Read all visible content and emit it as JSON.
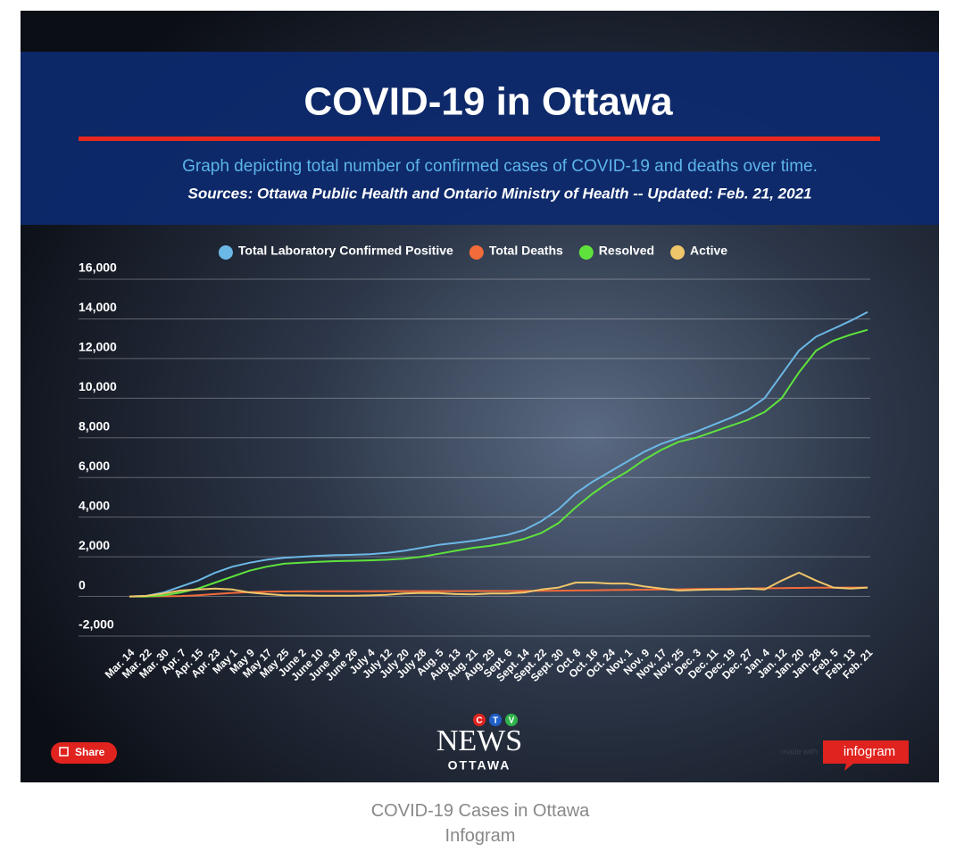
{
  "chart_data": {
    "type": "line",
    "title": "COVID-19 in Ottawa",
    "subtitle": "Graph depicting total number of confirmed cases of COVID-19 and deaths over time.",
    "sources": "Sources:  Ottawa Public Health and Ontario Ministry of Health -- Updated:  Feb. 21, 2021",
    "categories": [
      "Mar. 14",
      "Mar. 22",
      "Mar. 30",
      "Apr. 7",
      "Apr. 15",
      "Apr. 23",
      "May 1",
      "May 9",
      "May 17",
      "May 25",
      "June 2",
      "June 10",
      "June 18",
      "June 26",
      "July 4",
      "July 12",
      "July 20",
      "July 28",
      "Aug. 5",
      "Aug. 13",
      "Aug. 21",
      "Aug. 29",
      "Sept. 6",
      "Sept. 14",
      "Sept. 22",
      "Sept. 30",
      "Oct. 8",
      "Oct. 16",
      "Oct. 24",
      "Nov. 1",
      "Nov. 9",
      "Nov. 17",
      "Nov. 25",
      "Dec. 3",
      "Dec. 11",
      "Dec. 19",
      "Dec. 27",
      "Jan. 4",
      "Jan. 12",
      "Jan. 20",
      "Jan. 28",
      "Feb. 5",
      "Feb. 13",
      "Feb. 21"
    ],
    "series": [
      {
        "name": "Total Laboratory Confirmed Positive",
        "color": "#6cb8e6",
        "values": [
          0,
          30,
          200,
          500,
          800,
          1200,
          1500,
          1700,
          1850,
          1950,
          2000,
          2050,
          2080,
          2100,
          2130,
          2200,
          2300,
          2450,
          2600,
          2700,
          2800,
          2950,
          3100,
          3350,
          3800,
          4400,
          5200,
          5800,
          6300,
          6800,
          7300,
          7700,
          8000,
          8300,
          8650,
          9000,
          9400,
          10000,
          11200,
          12400,
          13100,
          13500,
          13900,
          14350
        ]
      },
      {
        "name": "Total Deaths",
        "color": "#f26b3a",
        "values": [
          0,
          0,
          5,
          20,
          60,
          120,
          180,
          220,
          240,
          250,
          255,
          260,
          262,
          265,
          265,
          266,
          267,
          268,
          270,
          270,
          272,
          273,
          274,
          275,
          280,
          290,
          300,
          310,
          320,
          330,
          340,
          350,
          360,
          370,
          380,
          390,
          400,
          410,
          420,
          430,
          440,
          445,
          448,
          450
        ]
      },
      {
        "name": "Resolved",
        "color": "#5fe33c",
        "values": [
          0,
          0,
          50,
          200,
          400,
          700,
          1000,
          1300,
          1500,
          1650,
          1700,
          1750,
          1780,
          1800,
          1820,
          1850,
          1900,
          2000,
          2150,
          2300,
          2450,
          2550,
          2700,
          2900,
          3200,
          3700,
          4500,
          5200,
          5800,
          6300,
          6900,
          7400,
          7800,
          8000,
          8300,
          8600,
          8900,
          9300,
          10000,
          11300,
          12400,
          12900,
          13200,
          13450
        ]
      },
      {
        "name": "Active",
        "color": "#f0c66a",
        "values": [
          0,
          30,
          150,
          300,
          350,
          400,
          350,
          200,
          120,
          60,
          50,
          40,
          40,
          40,
          50,
          80,
          150,
          180,
          170,
          120,
          100,
          150,
          150,
          200,
          350,
          450,
          700,
          700,
          650,
          650,
          500,
          400,
          300,
          330,
          350,
          350,
          400,
          350,
          800,
          1200,
          800,
          450,
          400,
          450
        ]
      }
    ],
    "ylim": [
      -2000,
      16000
    ],
    "yticks": [
      {
        "value": -2000,
        "label": "-2,000"
      },
      0,
      {
        "value": 2000,
        "label": "2,000"
      },
      {
        "value": 4000,
        "label": "4,000"
      },
      {
        "value": 6000,
        "label": "6,000"
      },
      {
        "value": 8000,
        "label": "8,000"
      },
      {
        "value": 10000,
        "label": "10,000"
      },
      {
        "value": 12000,
        "label": "12,000"
      },
      {
        "value": 14000,
        "label": "14,000"
      },
      {
        "value": 16000,
        "label": "16,000"
      }
    ],
    "grid": true,
    "legend": "top"
  },
  "share": "Share",
  "logo": {
    "letters": [
      "C",
      "T",
      "V"
    ],
    "brand": "NEWS",
    "region": "OTTAWA"
  },
  "badge": {
    "prefix": "made with",
    "name": "infogram"
  },
  "caption": [
    "COVID-19 Cases in Ottawa",
    "Infogram"
  ]
}
